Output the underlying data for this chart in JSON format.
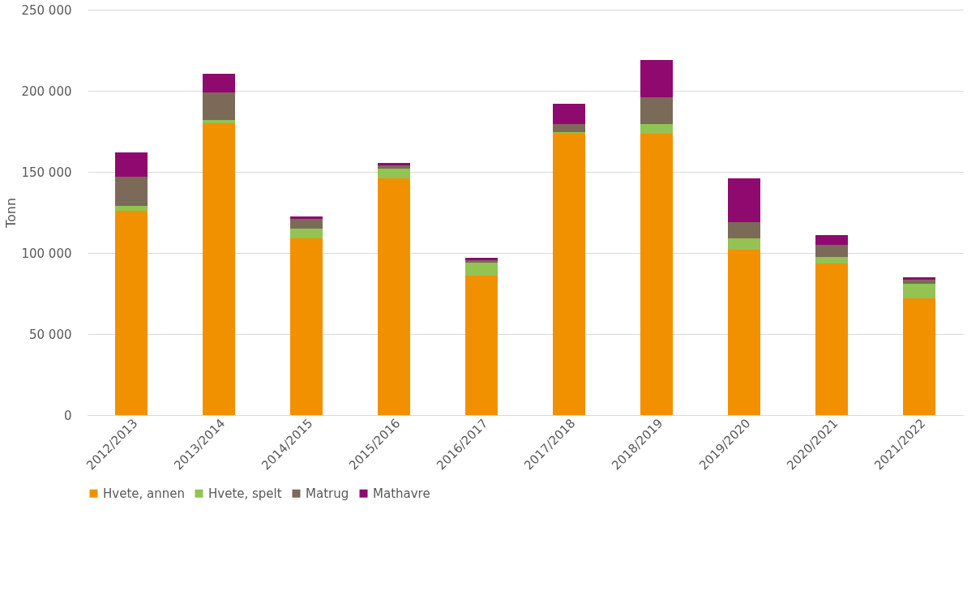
{
  "chart_data": {
    "type": "bar",
    "stacked": true,
    "ylabel": "Tonn",
    "categories": [
      "2012/2013",
      "2013/2014",
      "2014/2015",
      "2015/2016",
      "2016/2017",
      "2017/2018",
      "2018/2019",
      "2019/2020",
      "2020/2021",
      "2021/2022"
    ],
    "series": [
      {
        "name": "Hvete, annen",
        "color": "#f29100",
        "values": [
          126000,
          180000,
          109000,
          146000,
          86000,
          174000,
          173500,
          102000,
          93500,
          72000
        ]
      },
      {
        "name": "Hvete, spelt",
        "color": "#92c353",
        "values": [
          3000,
          2000,
          6000,
          6000,
          8000,
          500,
          6000,
          7000,
          4000,
          9000
        ]
      },
      {
        "name": "Matrug",
        "color": "#7b6a58",
        "values": [
          18000,
          17000,
          6000,
          2000,
          1500,
          5000,
          16500,
          10000,
          7500,
          2500
        ]
      },
      {
        "name": "Mathavre",
        "color": "#8e0a6f",
        "values": [
          15000,
          11500,
          1500,
          1500,
          1500,
          12500,
          23000,
          27000,
          6000,
          1500
        ]
      }
    ],
    "ylim": [
      0,
      250000
    ],
    "yticks": [
      0,
      {
        "value": 50000,
        "label": "50 000"
      },
      {
        "value": 100000,
        "label": "100 000"
      },
      {
        "value": 150000,
        "label": "150 000"
      },
      {
        "value": 200000,
        "label": "200 000"
      },
      {
        "value": 250000,
        "label": "250 000"
      }
    ],
    "grid": "y",
    "legend": "bottom"
  }
}
